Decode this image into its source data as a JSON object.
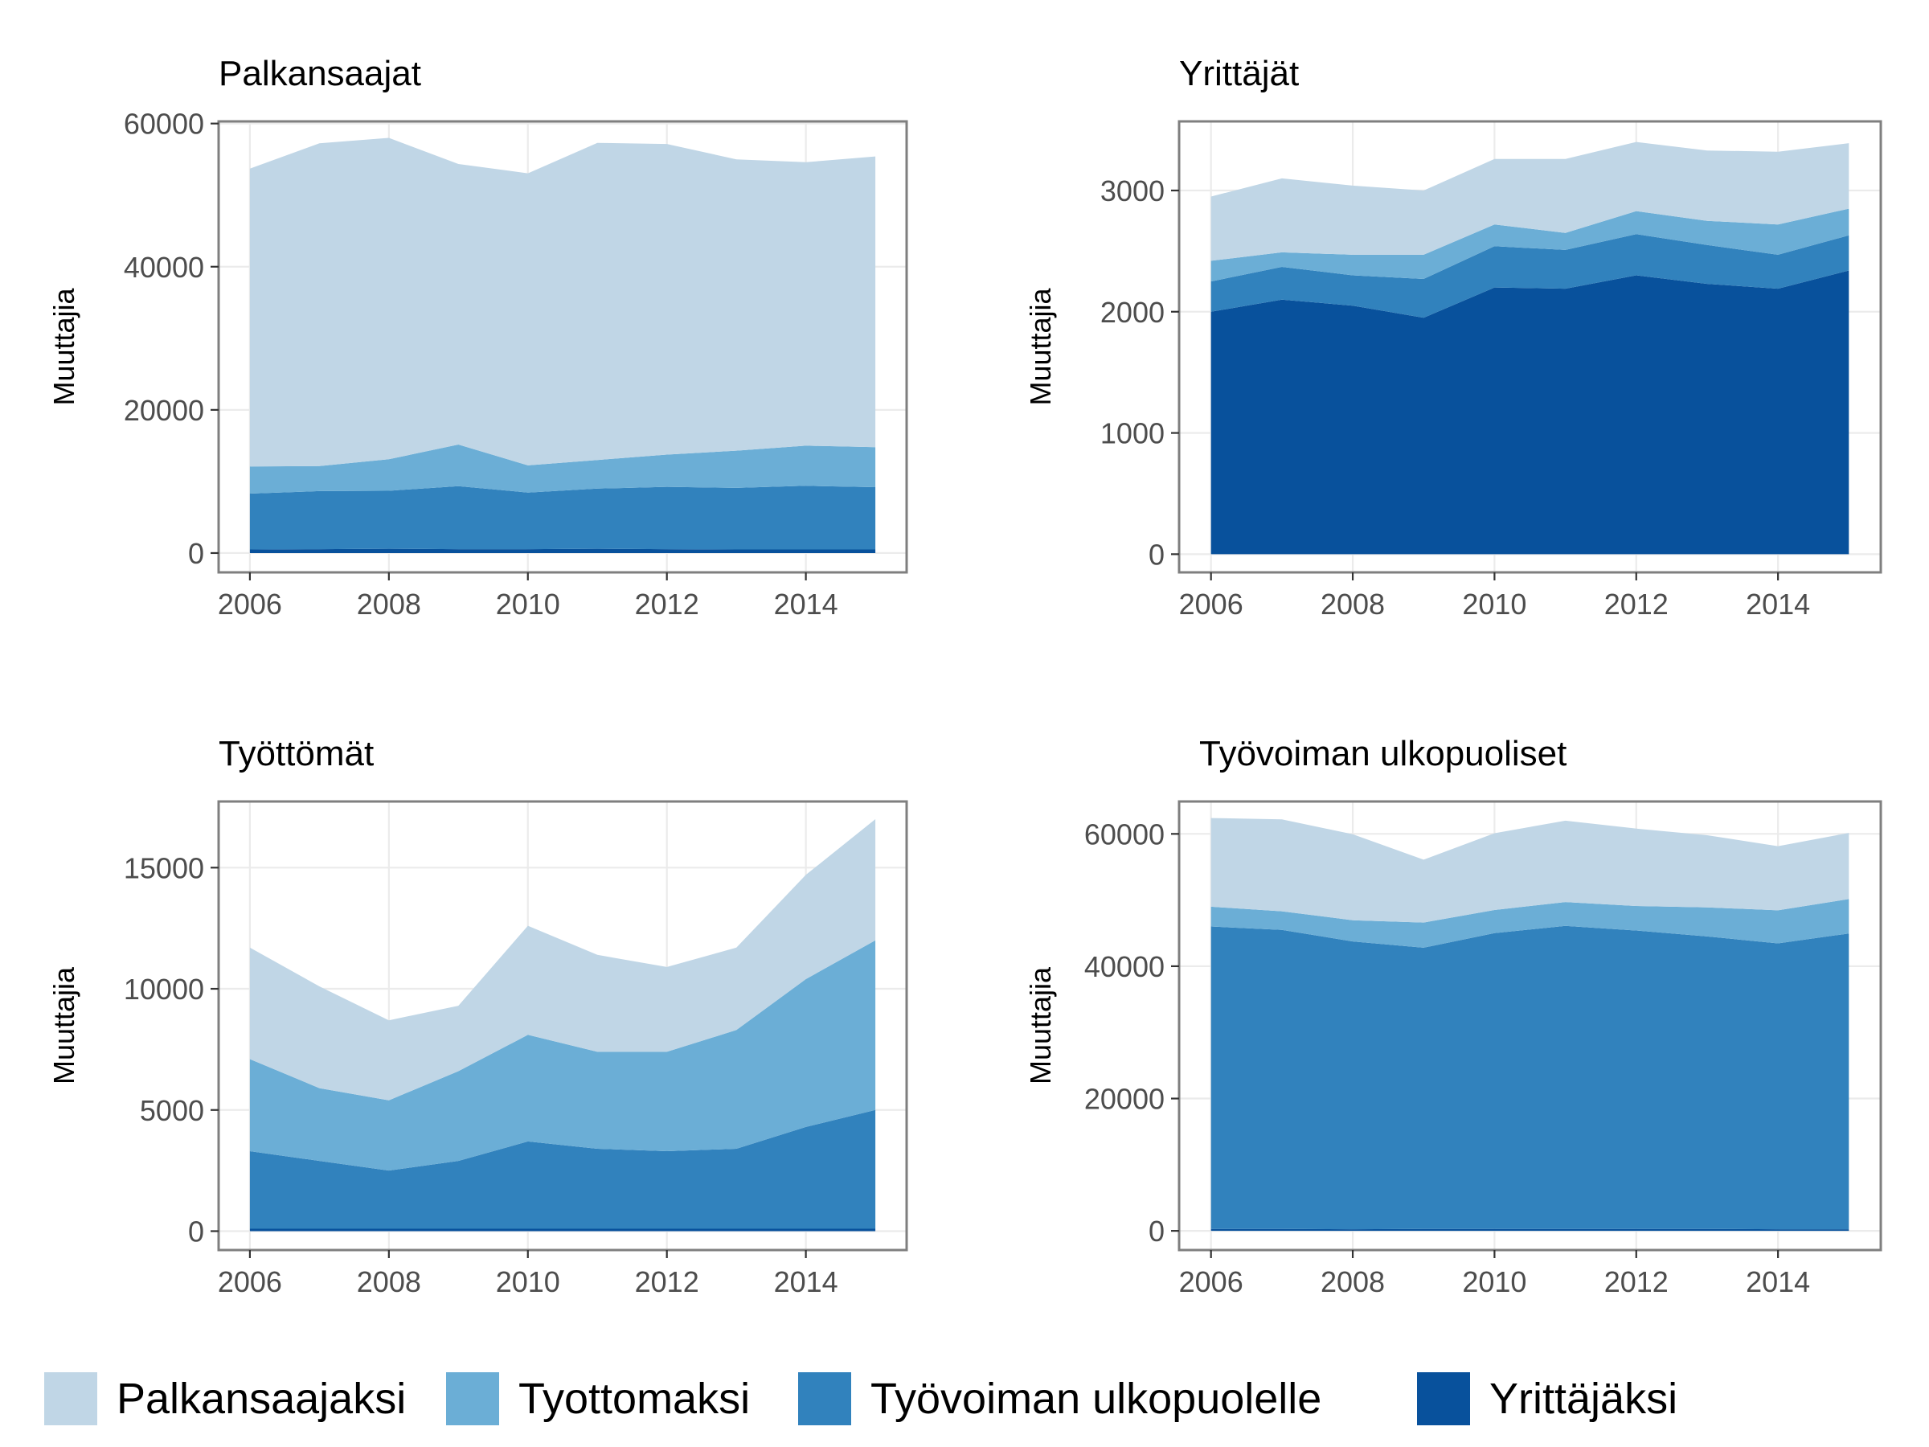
{
  "legend": {
    "items": [
      {
        "label": "Palkansaajaksi",
        "color": "#c0d6e6"
      },
      {
        "label": "Tyottomaksi",
        "color": "#6baed6"
      },
      {
        "label": "Työvoiman ulkopuolelle",
        "color": "#3182bd"
      },
      {
        "label": "Yrittäjäksi",
        "color": "#08519c"
      }
    ]
  },
  "chart_data": [
    {
      "type": "area",
      "title": "Palkansaajat",
      "ylabel": "Muuttajia",
      "xlabel": "",
      "x": [
        2006,
        2007,
        2008,
        2009,
        2010,
        2011,
        2012,
        2013,
        2014,
        2015
      ],
      "xticks": [
        "2006",
        "2008",
        "2010",
        "2012",
        "2014"
      ],
      "yticks": [
        "0",
        "20000",
        "40000",
        "60000"
      ],
      "xlim": [
        2005.55,
        2015.45
      ],
      "ylim": [
        -2700,
        60300
      ],
      "grid": true,
      "stacked": true,
      "series": [
        {
          "name": "Yrittäjäksi",
          "color": "#08519c",
          "values": [
            500,
            550,
            600,
            550,
            550,
            600,
            550,
            500,
            500,
            500
          ]
        },
        {
          "name": "Työvoiman ulkopuolelle",
          "color": "#3182bd",
          "values": [
            7800,
            8100,
            8100,
            8800,
            7900,
            8400,
            8700,
            8600,
            8900,
            8700
          ]
        },
        {
          "name": "Tyottomaksi",
          "color": "#6baed6",
          "values": [
            3800,
            3500,
            4400,
            5800,
            3800,
            4000,
            4500,
            5200,
            5600,
            5600
          ]
        },
        {
          "name": "Palkansaajaksi",
          "color": "#c0d6e6",
          "values": [
            41600,
            45100,
            44900,
            39200,
            40800,
            44300,
            43400,
            40700,
            39600,
            40600
          ]
        }
      ]
    },
    {
      "type": "area",
      "title": "Yrittäjät",
      "ylabel": "Muuttajia",
      "xlabel": "",
      "x": [
        2006,
        2007,
        2008,
        2009,
        2010,
        2011,
        2012,
        2013,
        2014,
        2015
      ],
      "xticks": [
        "2006",
        "2008",
        "2010",
        "2012",
        "2014"
      ],
      "yticks": [
        "0",
        "1000",
        "2000",
        "3000"
      ],
      "xlim": [
        2005.55,
        2015.45
      ],
      "ylim": [
        -150,
        3570
      ],
      "grid": true,
      "stacked": true,
      "series": [
        {
          "name": "Yrittäjäksi",
          "color": "#08519c",
          "values": [
            2000,
            2100,
            2050,
            1950,
            2200,
            2190,
            2300,
            2230,
            2190,
            2340
          ]
        },
        {
          "name": "Työvoiman ulkopuolelle",
          "color": "#3182bd",
          "values": [
            250,
            270,
            250,
            320,
            340,
            320,
            340,
            320,
            280,
            290
          ]
        },
        {
          "name": "Tyottomaksi",
          "color": "#6baed6",
          "values": [
            170,
            120,
            170,
            200,
            180,
            140,
            190,
            200,
            250,
            220
          ]
        },
        {
          "name": "Palkansaajaksi",
          "color": "#c0d6e6",
          "values": [
            530,
            610,
            570,
            530,
            540,
            610,
            570,
            580,
            600,
            540
          ]
        }
      ]
    },
    {
      "type": "area",
      "title": "Työttömät",
      "ylabel": "Muuttajia",
      "xlabel": "",
      "x": [
        2006,
        2007,
        2008,
        2009,
        2010,
        2011,
        2012,
        2013,
        2014,
        2015
      ],
      "xticks": [
        "2006",
        "2008",
        "2010",
        "2012",
        "2014"
      ],
      "yticks": [
        "0",
        "5000",
        "10000",
        "15000"
      ],
      "xlim": [
        2005.55,
        2015.45
      ],
      "ylim": [
        -780,
        17730
      ],
      "grid": true,
      "stacked": true,
      "series": [
        {
          "name": "Yrittäjäksi",
          "color": "#08519c",
          "values": [
            100,
            100,
            100,
            100,
            100,
            100,
            100,
            100,
            100,
            100
          ]
        },
        {
          "name": "Työvoiman ulkopuolelle",
          "color": "#3182bd",
          "values": [
            3200,
            2800,
            2400,
            2800,
            3600,
            3300,
            3200,
            3300,
            4200,
            4900
          ]
        },
        {
          "name": "Tyottomaksi",
          "color": "#6baed6",
          "values": [
            3800,
            3000,
            2900,
            3700,
            4400,
            4000,
            4100,
            4900,
            6100,
            7000
          ]
        },
        {
          "name": "Palkansaajaksi",
          "color": "#c0d6e6",
          "values": [
            4600,
            4200,
            3300,
            2700,
            4500,
            4000,
            3500,
            3400,
            4300,
            5000
          ]
        }
      ]
    },
    {
      "type": "area",
      "title": "Työvoiman ulkopuoliset",
      "ylabel": "Muuttajia",
      "xlabel": "",
      "x": [
        2006,
        2007,
        2008,
        2009,
        2010,
        2011,
        2012,
        2013,
        2014,
        2015
      ],
      "xticks": [
        "2006",
        "2008",
        "2010",
        "2012",
        "2014"
      ],
      "yticks": [
        "0",
        "20000",
        "40000",
        "60000"
      ],
      "xlim": [
        2005.55,
        2015.45
      ],
      "ylim": [
        -2900,
        64900
      ],
      "grid": true,
      "stacked": true,
      "series": [
        {
          "name": "Yrittäjäksi",
          "color": "#08519c",
          "values": [
            300,
            300,
            250,
            300,
            300,
            300,
            300,
            300,
            250,
            250
          ]
        },
        {
          "name": "Työvoiman ulkopuolelle",
          "color": "#3182bd",
          "values": [
            45700,
            45200,
            43500,
            42500,
            44700,
            45800,
            45100,
            44200,
            43200,
            44700
          ]
        },
        {
          "name": "Tyottomaksi",
          "color": "#6baed6",
          "values": [
            3000,
            2800,
            3200,
            3800,
            3500,
            3600,
            3700,
            4400,
            5000,
            5200
          ]
        },
        {
          "name": "Palkansaajaksi",
          "color": "#c0d6e6",
          "values": [
            13400,
            13900,
            13000,
            9500,
            11600,
            12300,
            11700,
            10900,
            9700,
            10000
          ]
        }
      ]
    }
  ]
}
